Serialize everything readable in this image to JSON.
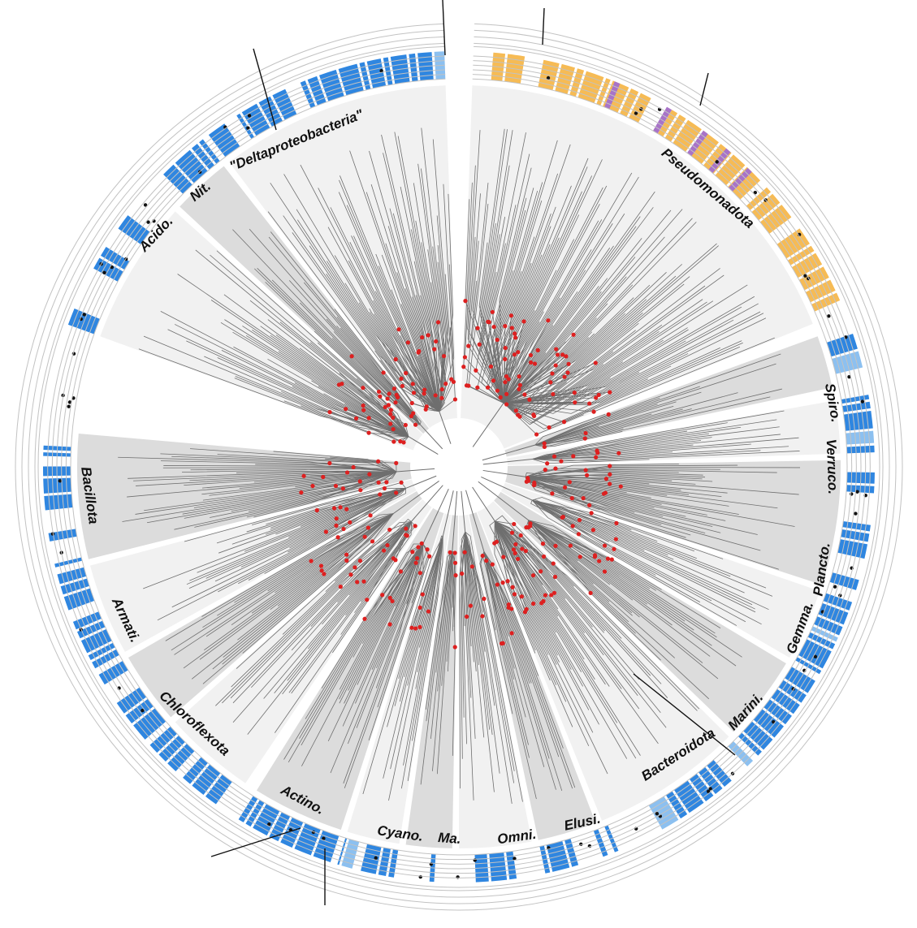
{
  "diagram": {
    "type": "circular-phylogenetic-tree",
    "colors": {
      "branch": "#6f6f6f",
      "node_marker": "#dd2020",
      "ring_blue": "#2f86e0",
      "ring_light_blue": "#8cc0f0",
      "ring_orange": "#f6bb55",
      "ring_purple": "#a873c8",
      "ring_dot": "#111111",
      "sector_light": "#f1f1f1",
      "sector_dark": "#dcdcdc",
      "ring_line": "#c2c2c2"
    },
    "ring_track_count": 6,
    "clades": [
      {
        "name": "\"Deltaproteobacteria\"",
        "color": "blue"
      },
      {
        "name": "Nit.",
        "color": "blue"
      },
      {
        "name": "Acido.",
        "color": "blue"
      },
      {
        "name": "Pseudomonadota",
        "color": "orange"
      },
      {
        "name": "Spiro.",
        "color": "blue"
      },
      {
        "name": "Verruco.",
        "color": "blue"
      },
      {
        "name": "Plancto.",
        "color": "blue"
      },
      {
        "name": "Gemma.",
        "color": "blue"
      },
      {
        "name": "Marini.",
        "color": "blue"
      },
      {
        "name": "Bacteroidota",
        "color": "blue"
      },
      {
        "name": "Elusi.",
        "color": "blue"
      },
      {
        "name": "Omni.",
        "color": "blue"
      },
      {
        "name": "Ma.",
        "color": "blue"
      },
      {
        "name": "Cyano.",
        "color": "blue"
      },
      {
        "name": "Actino.",
        "color": "blue"
      },
      {
        "name": "Chloroflexota",
        "color": "blue"
      },
      {
        "name": "Armati.",
        "color": "blue"
      },
      {
        "name": "Bacillota",
        "color": "blue"
      }
    ]
  }
}
